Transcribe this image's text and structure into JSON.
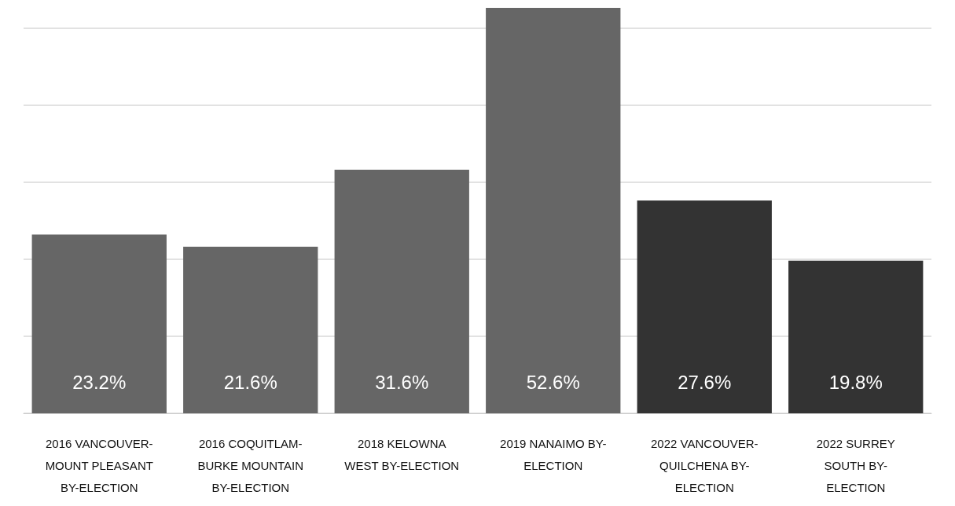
{
  "chart_data": {
    "type": "bar",
    "categories": [
      "2016 VANCOUVER-MOUNT PLEASANT BY-ELECTION",
      "2016 COQUITLAM-BURKE MOUNTAIN BY-ELECTION",
      "2018 KELOWNA WEST BY-ELECTION",
      "2019 NANAIMO BY-ELECTION",
      "2022 VANCOUVER-QUILCHENA BY-ELECTION",
      "2022 SURREY SOUTH BY-ELECTION"
    ],
    "values": [
      23.2,
      21.6,
      31.6,
      52.6,
      27.6,
      19.8
    ],
    "colors": [
      "#666666",
      "#666666",
      "#666666",
      "#666666",
      "#333333",
      "#333333"
    ],
    "value_labels": [
      "23.2%",
      "21.6%",
      "31.6%",
      "52.6%",
      "27.6%",
      "19.8%"
    ],
    "ylim": [
      0,
      53
    ],
    "yticks": [
      {
        "value": 0,
        "label": null
      },
      {
        "value": 10,
        "label": null
      },
      {
        "value": 20,
        "label": null
      },
      {
        "value": 30,
        "label": null
      },
      {
        "value": 40,
        "label": null
      },
      {
        "value": 50,
        "label": null
      }
    ],
    "grid": "y",
    "tick_labels": "x"
  }
}
